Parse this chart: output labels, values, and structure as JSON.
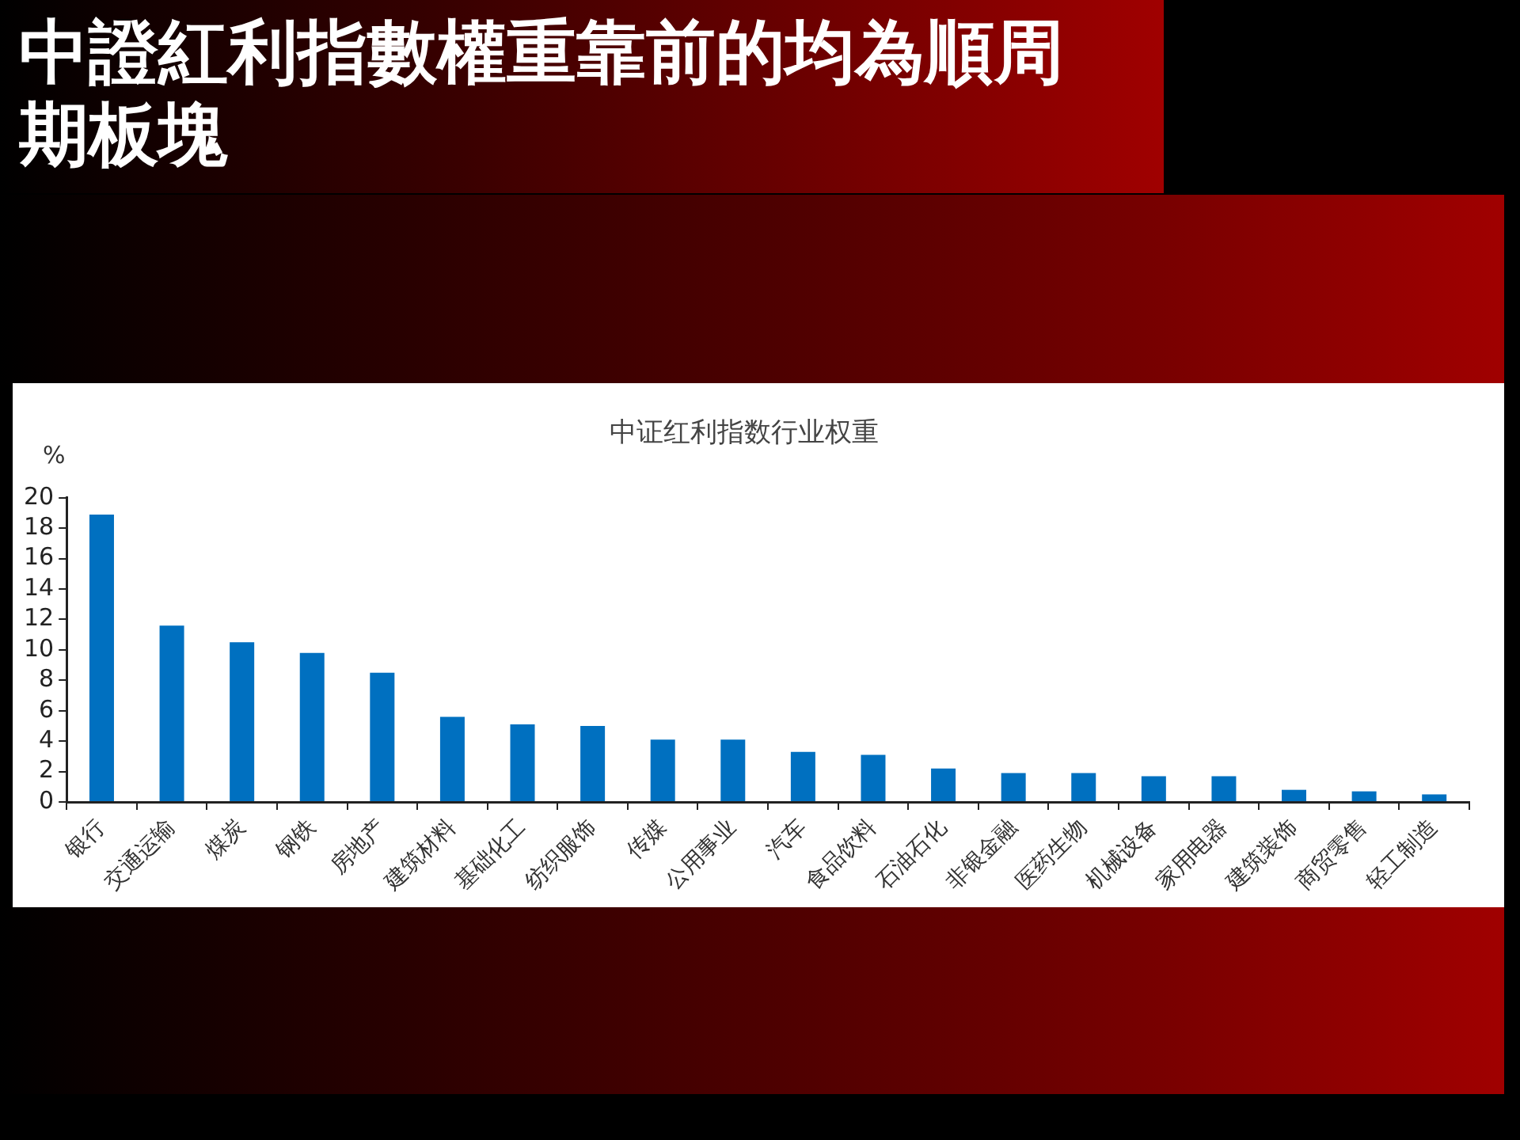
{
  "chart_data": {
    "type": "bar",
    "title": "中證紅利指數權重靠前的均為順周期板塊",
    "subtitle": "中证红利指数行业权重",
    "ylabel": "%",
    "categories": [
      "银行",
      "交通运输",
      "煤炭",
      "钢铁",
      "房地产",
      "建筑材料",
      "基础化工",
      "纺织服饰",
      "传媒",
      "公用事业",
      "汽车",
      "食品饮料",
      "石油石化",
      "非银金融",
      "医药生物",
      "机械设备",
      "家用电器",
      "建筑装饰",
      "商贸零售",
      "轻工制造"
    ],
    "values": [
      18.9,
      11.6,
      10.5,
      9.8,
      8.5,
      5.6,
      5.1,
      5.0,
      4.1,
      4.1,
      3.3,
      3.1,
      2.2,
      1.9,
      1.9,
      1.7,
      1.7,
      0.8,
      0.7,
      0.5
    ],
    "color": "#0070c0",
    "ylim": [
      0,
      20
    ],
    "yticks": [
      0,
      2,
      4,
      6,
      8,
      10,
      12,
      14,
      16,
      18,
      20
    ],
    "grid": false,
    "legend": false
  }
}
